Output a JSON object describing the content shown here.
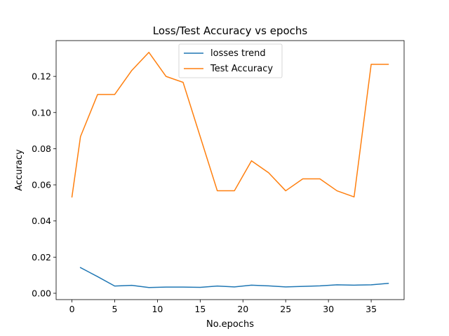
{
  "chart_data": {
    "type": "line",
    "title": "Loss/Test Accuracy vs epochs",
    "xlabel": "No.epochs",
    "ylabel": "Accuracy",
    "xlim": [
      -1.85,
      38.85
    ],
    "ylim": [
      -0.0035,
      0.1398
    ],
    "xticks": [
      0,
      5,
      10,
      15,
      20,
      25,
      30,
      35
    ],
    "yticks": [
      0.0,
      0.02,
      0.04,
      0.06,
      0.08,
      0.1,
      0.12
    ],
    "ytick_labels": [
      "0.00",
      "0.02",
      "0.04",
      "0.06",
      "0.08",
      "0.10",
      "0.12"
    ],
    "legend_position": "upper center",
    "grid": false,
    "series": [
      {
        "name": "losses trend",
        "color": "#1f77b4",
        "x": [
          1,
          3,
          5,
          7,
          9,
          11,
          13,
          15,
          17,
          19,
          21,
          23,
          25,
          27,
          29,
          31,
          33,
          35,
          37
        ],
        "values": [
          0.0142,
          0.0092,
          0.004,
          0.0044,
          0.0032,
          0.0034,
          0.0034,
          0.0033,
          0.004,
          0.0035,
          0.0045,
          0.0041,
          0.0035,
          0.0038,
          0.0041,
          0.0047,
          0.0045,
          0.0047,
          0.0055
        ]
      },
      {
        "name": "Test Accuracy",
        "color": "#ff7f0e",
        "x": [
          0,
          1,
          3,
          5,
          7,
          9,
          11,
          13,
          15,
          17,
          19,
          21,
          23,
          25,
          27,
          29,
          31,
          33,
          35,
          37
        ],
        "values": [
          0.0533,
          0.0867,
          0.11,
          0.11,
          0.1233,
          0.1333,
          0.12,
          0.1167,
          0.0867,
          0.0567,
          0.0567,
          0.0733,
          0.0667,
          0.0567,
          0.0633,
          0.0633,
          0.0567,
          0.0533,
          0.1267,
          0.1267
        ]
      }
    ]
  }
}
